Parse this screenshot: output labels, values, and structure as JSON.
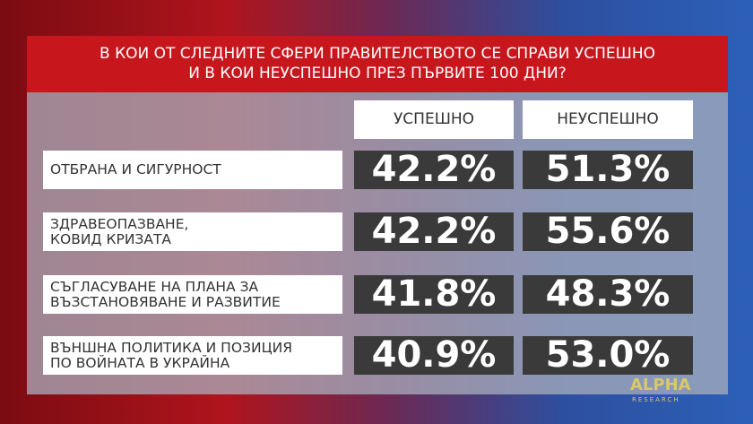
{
  "header": {
    "title_lines": [
      "В КОИ ОТ СЛЕДНИТЕ СФЕРИ ПРАВИТЕЛСТВОТО СЕ СПРАВИ УСПЕШНО",
      "И В КОИ НЕУСПЕШНО ПРЕЗ ПЪРВИТЕ 100 ДНИ?"
    ]
  },
  "table": {
    "columns": [
      "УСПЕШНО",
      "НЕУСПЕШНО"
    ],
    "rows": [
      {
        "label": [
          "ОТБРАНА И СИГУРНОСТ"
        ],
        "values": [
          "42.2%",
          "51.3%"
        ]
      },
      {
        "label": [
          "ЗДРАВЕОПАЗВАНЕ,",
          "КОВИД КРИЗАТА"
        ],
        "values": [
          "42.2%",
          "55.6%"
        ]
      },
      {
        "label": [
          "СЪГЛАСУВАНЕ НА ПЛАНА ЗА",
          "ВЪЗСТАНОВЯВАНЕ И РАЗВИТИЕ"
        ],
        "values": [
          "41.8%",
          "48.3%"
        ]
      },
      {
        "label": [
          "ВЪНШНА ПОЛИТИКА И ПОЗИЦИЯ",
          "ПО ВОЙНАТА В УКРАЙНА"
        ],
        "values": [
          "40.9%",
          "53.0%"
        ]
      }
    ]
  },
  "logo": {
    "name": "ALPHA",
    "sub": "RESEARCH"
  }
}
